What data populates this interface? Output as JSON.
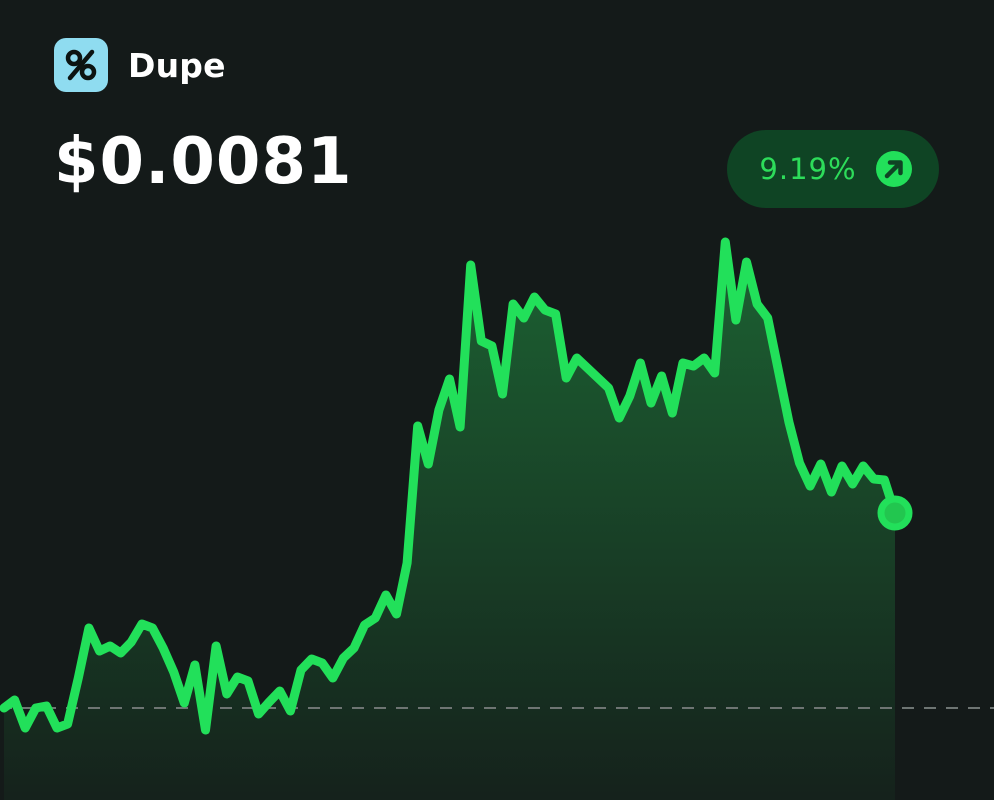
{
  "token": {
    "name": "Dupe",
    "icon": "percent-logo-icon"
  },
  "price": "$0.0081",
  "change": {
    "value": "9.19%",
    "direction_icon": "arrow-up-right-icon"
  },
  "colors": {
    "background": "#141a19",
    "accent": "#22e05a",
    "pill_bg": "#0f4424",
    "logo_bg": "#8fdcf0"
  },
  "chart_data": {
    "type": "area",
    "baseline_dashed": true,
    "grid": false,
    "ylim": [
      -60,
      600
    ],
    "values": [
      0,
      8,
      -20,
      0,
      2,
      -20,
      -16,
      30,
      80,
      57,
      62,
      55,
      66,
      84,
      80,
      60,
      36,
      5,
      43,
      -22,
      62,
      14,
      31,
      27,
      -6,
      6,
      17,
      -3,
      38,
      49,
      45,
      30,
      50,
      60,
      83,
      90,
      113,
      94,
      145,
      282,
      244,
      298,
      329,
      281,
      443,
      367,
      362,
      314,
      404,
      390,
      411,
      398,
      394,
      330,
      350,
      340,
      330,
      320,
      290,
      312,
      345,
      305,
      332,
      295,
      345,
      342,
      350,
      335,
      466,
      388,
      446,
      404,
      390,
      338,
      286,
      245,
      222,
      244,
      216,
      242,
      224,
      242,
      229,
      228,
      195
    ]
  }
}
